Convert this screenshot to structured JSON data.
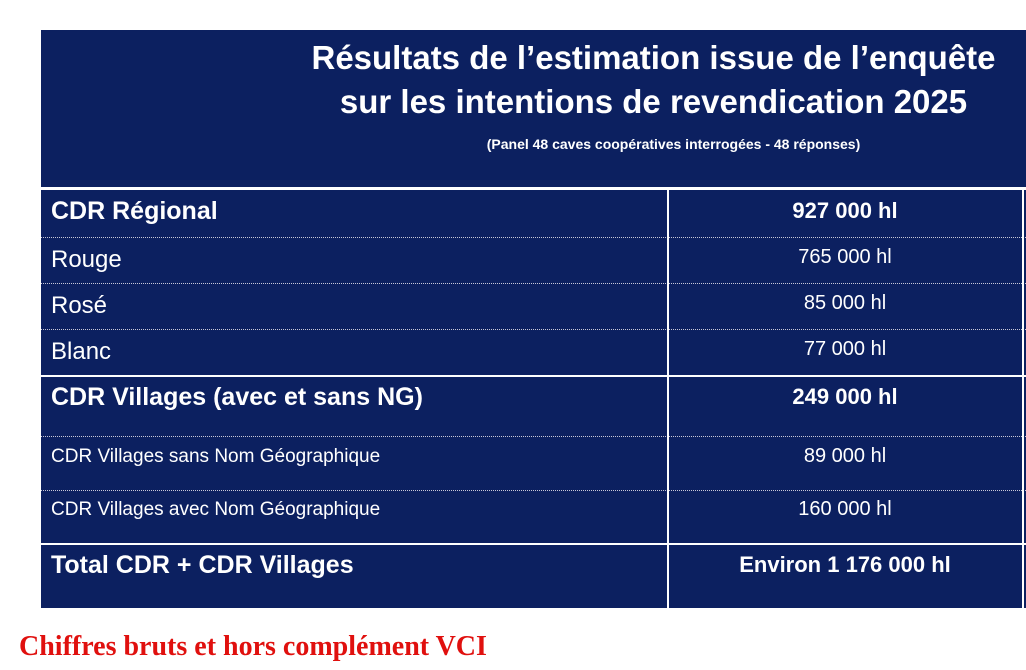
{
  "title_lines": [
    "Résultats de l’estimation issue de l’enquête",
    "sur les intentions de revendication 2025"
  ],
  "subtitle": "(Panel 48 caves coopératives interrogées  - 48 réponses)",
  "rows": [
    {
      "label": "CDR Régional",
      "value": "927 000 hl"
    },
    {
      "label": "Rouge",
      "value": "765 000 hl"
    },
    {
      "label": "Rosé",
      "value": "85 000 hl"
    },
    {
      "label": "Blanc",
      "value": "77 000 hl"
    },
    {
      "label": "CDR Villages (avec et sans NG)",
      "value": "249 000  hl"
    },
    {
      "label": "CDR Villages sans Nom Géographique",
      "value": "89 000  hl"
    },
    {
      "label": "CDR Villages avec Nom Géographique",
      "value": "160 000 hl"
    },
    {
      "label": "Total CDR + CDR Villages",
      "value": "Environ  1 176 000 hl"
    }
  ],
  "footnote": "Chiffres bruts et hors complément VCI",
  "colors": {
    "panel": "#0c2060",
    "footnote": "#e0100e"
  }
}
